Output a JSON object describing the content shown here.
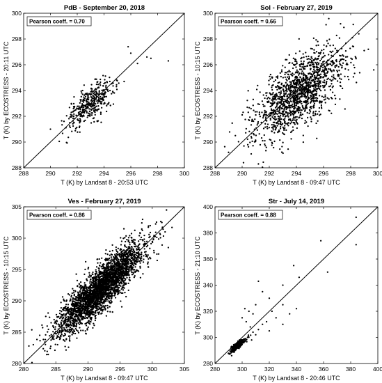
{
  "chart_data": [
    {
      "type": "scatter",
      "title": "PdB - September 20, 2018",
      "xlabel": "T (K) by Landsat 8 - 20:53 UTC",
      "ylabel": "T (K) by ECOSTRESS - 20:11 UTC",
      "annotation": "Pearson coeff. = 0.70",
      "xlim": [
        288,
        300
      ],
      "ylim": [
        288,
        300
      ],
      "xticks": [
        "288",
        "290",
        "292",
        "294",
        "296",
        "298",
        "300"
      ],
      "yticks": [
        "288",
        "290",
        "292",
        "294",
        "296",
        "298",
        "300"
      ],
      "identity_line": true,
      "grid": false,
      "cloud": {
        "n": 400,
        "cx": 293.0,
        "cy": 293.0,
        "sx": 0.9,
        "sy": 0.9,
        "rho": 0.7
      },
      "points": [
        {
          "x": 297.2,
          "y": 296.6
        },
        {
          "x": 297.5,
          "y": 296.5
        },
        {
          "x": 298.8,
          "y": 296.3
        },
        {
          "x": 296.0,
          "y": 296.9
        },
        {
          "x": 295.8,
          "y": 297.4
        },
        {
          "x": 296.5,
          "y": 296.1
        },
        {
          "x": 290.0,
          "y": 291.0
        },
        {
          "x": 295.5,
          "y": 294.7
        }
      ]
    },
    {
      "type": "scatter",
      "title": "Sol - February 27, 2019",
      "xlabel": "T (K) by Landsat 8 - 09:47 UTC",
      "ylabel": "T (K) by ECOSTRESS - 10:15 UTC",
      "annotation": "Pearson coeff. = 0.66",
      "xlim": [
        288,
        300
      ],
      "ylim": [
        288,
        300
      ],
      "xticks": [
        "288",
        "290",
        "292",
        "294",
        "296",
        "298",
        "300"
      ],
      "yticks": [
        "288",
        "290",
        "292",
        "294",
        "296",
        "298",
        "300"
      ],
      "identity_line": true,
      "grid": false,
      "cloud": {
        "n": 1500,
        "cx": 294.2,
        "cy": 293.8,
        "sx": 1.65,
        "sy": 1.75,
        "rho": 0.66
      },
      "points": [
        {
          "x": 289.0,
          "y": 289.2
        },
        {
          "x": 290.1,
          "y": 288.4
        },
        {
          "x": 291.2,
          "y": 288.3
        },
        {
          "x": 289.5,
          "y": 290.5
        },
        {
          "x": 297.5,
          "y": 298.9
        },
        {
          "x": 298.6,
          "y": 298.4
        },
        {
          "x": 299.3,
          "y": 297.2
        },
        {
          "x": 299.7,
          "y": 295.6
        }
      ]
    },
    {
      "type": "scatter",
      "title": "Ves - February 27, 2019",
      "xlabel": "T (K) by Landsat 8 - 09:47 UTC",
      "ylabel": "T (K) by ECOSTRESS - 10:15 UTC",
      "annotation": "Pearson coeff. = 0.86",
      "xlim": [
        280,
        305
      ],
      "ylim": [
        280,
        305
      ],
      "xticks": [
        "280",
        "285",
        "290",
        "295",
        "300",
        "305"
      ],
      "yticks": [
        "280",
        "285",
        "290",
        "295",
        "300",
        "305"
      ],
      "identity_line": true,
      "grid": false,
      "cloud": {
        "n": 3200,
        "cx": 292.0,
        "cy": 292.0,
        "sx": 3.3,
        "sy": 3.5,
        "rho": 0.86
      },
      "points": [
        {
          "x": 281.5,
          "y": 283.0
        },
        {
          "x": 282.5,
          "y": 284.5
        },
        {
          "x": 301.5,
          "y": 302.5
        },
        {
          "x": 302.0,
          "y": 301.0
        },
        {
          "x": 298.5,
          "y": 303.0
        },
        {
          "x": 302.5,
          "y": 298.5
        }
      ]
    },
    {
      "type": "scatter",
      "title": "Str - July 14, 2019",
      "xlabel": "T (K) by Landsat 8 - 20:46 UTC",
      "ylabel": "T (K) by ECOSTRESS - 21:10 UTC",
      "annotation": "Pearson coeff. = 0.88",
      "xlim": [
        280,
        400
      ],
      "ylim": [
        280,
        400
      ],
      "xticks": [
        "280",
        "300",
        "320",
        "340",
        "360",
        "380",
        "400"
      ],
      "yticks": [
        "280",
        "300",
        "320",
        "340",
        "360",
        "380",
        "400"
      ],
      "identity_line": true,
      "grid": false,
      "cloud": {
        "n": 360,
        "cx": 297.0,
        "cy": 294.0,
        "sx": 2.6,
        "sy": 2.6,
        "rho": 0.88
      },
      "points": [
        {
          "x": 384,
          "y": 392
        },
        {
          "x": 384,
          "y": 371
        },
        {
          "x": 358,
          "y": 374
        },
        {
          "x": 363,
          "y": 350
        },
        {
          "x": 338,
          "y": 355
        },
        {
          "x": 342,
          "y": 346
        },
        {
          "x": 330,
          "y": 340
        },
        {
          "x": 315,
          "y": 335
        },
        {
          "x": 312,
          "y": 343
        },
        {
          "x": 320,
          "y": 330
        },
        {
          "x": 310,
          "y": 325
        },
        {
          "x": 305,
          "y": 320
        },
        {
          "x": 308,
          "y": 318
        },
        {
          "x": 330,
          "y": 325
        },
        {
          "x": 335,
          "y": 318
        },
        {
          "x": 320,
          "y": 305
        },
        {
          "x": 330,
          "y": 310
        },
        {
          "x": 318,
          "y": 312
        },
        {
          "x": 325,
          "y": 315
        },
        {
          "x": 303,
          "y": 312
        },
        {
          "x": 306,
          "y": 308
        },
        {
          "x": 308,
          "y": 304
        },
        {
          "x": 312,
          "y": 306
        },
        {
          "x": 300,
          "y": 315
        },
        {
          "x": 302,
          "y": 322
        },
        {
          "x": 315,
          "y": 310
        },
        {
          "x": 322,
          "y": 320
        },
        {
          "x": 340,
          "y": 322
        },
        {
          "x": 304,
          "y": 300
        },
        {
          "x": 307,
          "y": 298
        },
        {
          "x": 310,
          "y": 302
        }
      ]
    }
  ]
}
